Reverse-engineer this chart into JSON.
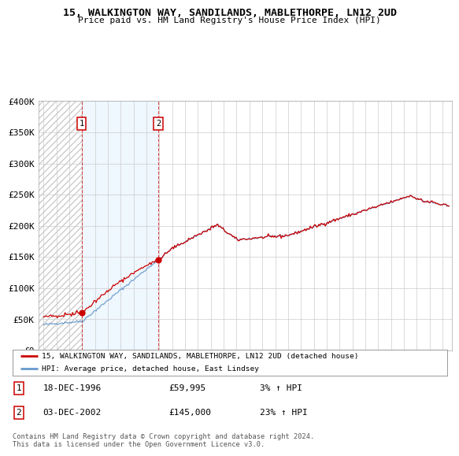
{
  "title": "15, WALKINGTON WAY, SANDILANDS, MABLETHORPE, LN12 2UD",
  "subtitle": "Price paid vs. HM Land Registry's House Price Index (HPI)",
  "ylim": [
    0,
    400000
  ],
  "yticks": [
    0,
    50000,
    100000,
    150000,
    200000,
    250000,
    300000,
    350000,
    400000
  ],
  "ytick_labels": [
    "£0",
    "£50K",
    "£100K",
    "£150K",
    "£200K",
    "£250K",
    "£300K",
    "£350K",
    "£400K"
  ],
  "sale1_date_num": 1996.96,
  "sale1_price": 59995,
  "sale1_label": "1",
  "sale1_date_str": "18-DEC-1996",
  "sale1_pct": "3%",
  "sale2_date_num": 2002.92,
  "sale2_price": 145000,
  "sale2_label": "2",
  "sale2_date_str": "03-DEC-2002",
  "sale2_pct": "23%",
  "hpi_color": "#6699cc",
  "price_color": "#cc0000",
  "legend_price_label": "15, WALKINGTON WAY, SANDILANDS, MABLETHORPE, LN12 2UD (detached house)",
  "legend_hpi_label": "HPI: Average price, detached house, East Lindsey",
  "footer": "Contains HM Land Registry data © Crown copyright and database right 2024.\nThis data is licensed under the Open Government Licence v3.0.",
  "bg_color": "#ffffff",
  "grid_color": "#cccccc",
  "shade_color": "#ddeeff"
}
